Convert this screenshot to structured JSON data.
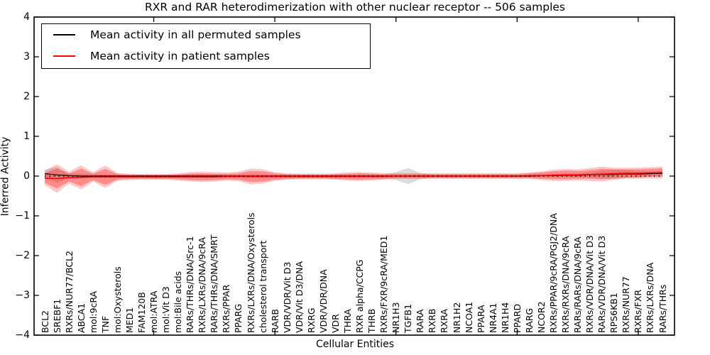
{
  "title": "RXR and RAR heterodimerization with other nuclear receptor -- 506 samples",
  "legend": {
    "items": [
      {
        "label": "Mean activity in all permuted samples",
        "color": "#000000"
      },
      {
        "label": "Mean activity in patient samples",
        "color": "#ff0000"
      }
    ]
  },
  "axes": {
    "xlabel": "Cellular Entities",
    "ylabel": "Inferred Activity"
  },
  "chart_data": {
    "type": "line",
    "title": "RXR and RAR heterodimerization with other nuclear receptor -- 506 samples",
    "xlabel": "Cellular Entities",
    "ylabel": "Inferred Activity",
    "ylim": [
      -4,
      4
    ],
    "yticks": [
      -4,
      -3,
      -2,
      -1,
      0,
      1,
      2,
      3,
      4
    ],
    "xtick_indices": [
      9,
      19,
      29,
      39,
      49
    ],
    "grid": false,
    "legend_position": "upper left",
    "zero_reference": 0,
    "categories": [
      "BCL2",
      "SREBF1",
      "RXRs/NUR77/BCL2",
      "ABCA1",
      "mol:9cRA",
      "TNF",
      "mol:Oxysterols",
      "MED1",
      "FAM120B",
      "mol:ATRA",
      "mol:Vit D3",
      "mol:Bile acids",
      "RARs/THRs/DNA/Src-1",
      "RXRs/LXRs/DNA/9cRA",
      "RARs/THRs/DNA/SMRT",
      "RXRs/PPAR",
      "PPARG",
      "RXRs/LXRs/DNA/Oxysterols",
      "cholesterol transport",
      "RARB",
      "VDR/VDR/Vit D3",
      "VDR/Vit D3/DNA",
      "RXRG",
      "VDR/VDR/DNA",
      "VDR",
      "THRA",
      "RXR alpha/CCPG",
      "THRB",
      "RXRs/FXR/9cRA/MED1",
      "NR1H3",
      "TGFB1",
      "RARA",
      "RXRB",
      "RXRA",
      "NR1H2",
      "NCOA1",
      "PPARA",
      "NR4A1",
      "NR1H4",
      "PPARD",
      "RARG",
      "NCOR2",
      "RXRs/PPAR/9cRA/PGJ2/DNA",
      "RXRs/RXRs/DNA/9cRA",
      "RARs/RARs/DNA/9cRA",
      "RXRs/VDR/DNA/Vit D3",
      "RARs/VDR/DNA/Vit D3",
      "RPS6KB1",
      "RXRs/NUR77",
      "RXRs/FXR",
      "RXRs/LXRs/DNA",
      "RARs/THRs"
    ],
    "series": [
      {
        "name": "Mean activity in all permuted samples",
        "color": "#000000",
        "values": [
          0.06,
          0.03,
          0.01,
          0,
          0,
          0,
          0,
          0,
          0,
          0,
          0,
          0,
          0,
          0,
          0,
          0,
          0,
          0,
          0,
          0,
          0,
          0,
          0,
          0,
          0,
          0,
          0,
          0,
          0,
          0,
          0,
          0,
          0,
          0,
          0,
          0,
          0,
          0,
          0,
          0,
          0,
          0.01,
          0.01,
          0.02,
          0.02,
          0.03,
          0.04,
          0.04,
          0.05,
          0.05,
          0.06,
          0.07
        ]
      },
      {
        "name": "Mean activity in patient samples",
        "color": "#ff0000",
        "values": [
          -0.05,
          -0.06,
          -0.04,
          -0.03,
          -0.02,
          -0.02,
          -0.02,
          -0.02,
          -0.02,
          -0.02,
          -0.02,
          -0.02,
          -0.02,
          -0.02,
          -0.02,
          -0.01,
          -0.01,
          -0.01,
          -0.01,
          -0.01,
          -0.01,
          -0.01,
          -0.01,
          -0.01,
          -0.01,
          -0.01,
          -0.01,
          -0.01,
          -0.01,
          0,
          0,
          0,
          0,
          0,
          0,
          0,
          0,
          0,
          0,
          0,
          0.01,
          0.01,
          0.02,
          0.03,
          0.03,
          0.04,
          0.05,
          0.06,
          0.07,
          0.07,
          0.08,
          0.09
        ]
      }
    ],
    "bands": [
      {
        "name": "permuted-std",
        "center_series": 0,
        "color": "#888888",
        "opacity": 0.3,
        "half_widths": [
          0.1,
          0.2,
          0.06,
          0.06,
          0.05,
          0.05,
          0.04,
          0.04,
          0.04,
          0.04,
          0.04,
          0.04,
          0.05,
          0.05,
          0.05,
          0.04,
          0.04,
          0.05,
          0.05,
          0.04,
          0.04,
          0.04,
          0.04,
          0.04,
          0.04,
          0.04,
          0.04,
          0.04,
          0.04,
          0.1,
          0.2,
          0.08,
          0.04,
          0.04,
          0.04,
          0.04,
          0.04,
          0.04,
          0.04,
          0.04,
          0.04,
          0.04,
          0.05,
          0.05,
          0.05,
          0.06,
          0.1,
          0.12,
          0.1,
          0.08,
          0.06,
          0.06
        ]
      },
      {
        "name": "patient-outer",
        "center_series": 1,
        "color": "#ff0000",
        "opacity": 0.22,
        "half_widths": [
          0.18,
          0.36,
          0.15,
          0.3,
          0.12,
          0.28,
          0.1,
          0.08,
          0.07,
          0.07,
          0.07,
          0.09,
          0.12,
          0.13,
          0.12,
          0.1,
          0.12,
          0.2,
          0.18,
          0.11,
          0.08,
          0.07,
          0.07,
          0.07,
          0.08,
          0.1,
          0.11,
          0.1,
          0.08,
          0.07,
          0.07,
          0.07,
          0.07,
          0.07,
          0.07,
          0.07,
          0.07,
          0.07,
          0.07,
          0.07,
          0.08,
          0.11,
          0.14,
          0.15,
          0.14,
          0.16,
          0.19,
          0.15,
          0.14,
          0.14,
          0.14,
          0.15
        ]
      },
      {
        "name": "patient-inner",
        "center_series": 1,
        "color": "#ff0000",
        "opacity": 0.3,
        "half_widths": [
          0.12,
          0.25,
          0.1,
          0.22,
          0.08,
          0.2,
          0.07,
          0.05,
          0.05,
          0.05,
          0.05,
          0.06,
          0.08,
          0.09,
          0.08,
          0.07,
          0.08,
          0.14,
          0.13,
          0.08,
          0.06,
          0.05,
          0.05,
          0.05,
          0.06,
          0.07,
          0.08,
          0.07,
          0.06,
          0.05,
          0.05,
          0.05,
          0.05,
          0.05,
          0.05,
          0.05,
          0.05,
          0.05,
          0.05,
          0.05,
          0.06,
          0.08,
          0.1,
          0.11,
          0.1,
          0.11,
          0.13,
          0.11,
          0.1,
          0.1,
          0.1,
          0.11
        ]
      }
    ]
  }
}
